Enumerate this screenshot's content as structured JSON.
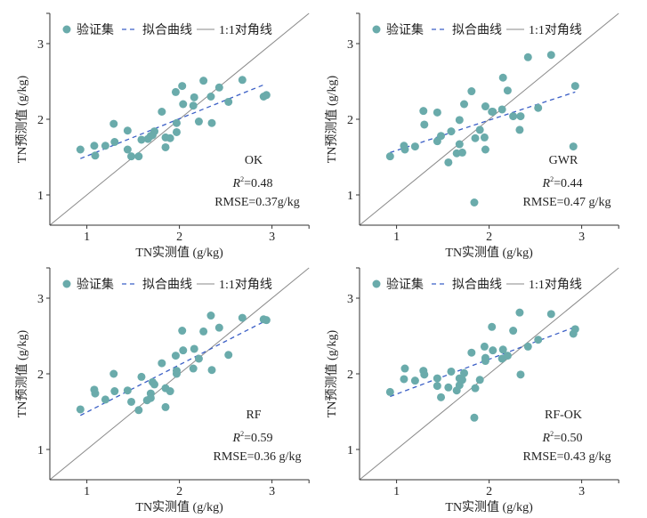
{
  "colors": {
    "point": "#6aabab",
    "fit": "#3b5fc6",
    "diagonal": "#8a8a8a",
    "axis": "#333333"
  },
  "legend": {
    "points": "验证集",
    "fit": "拟合曲线",
    "diagonal": "1:1对角线"
  },
  "chart_data": [
    {
      "type": "scatter",
      "title": "OK",
      "xlabel": "TN实测值 (g/kg)",
      "ylabel": "TN预测值 (g/kg)",
      "xlim": [
        0.6,
        3.4
      ],
      "ylim": [
        0.6,
        3.4
      ],
      "xticks": [
        "1",
        "2",
        "3"
      ],
      "yticks": [
        "1",
        "2",
        "3"
      ],
      "r2_label": "R",
      "r2_value": "=0.48",
      "rmse": "RMSE=0.37g/kg",
      "fit": [
        [
          0.93,
          1.48
        ],
        [
          2.92,
          2.46
        ]
      ],
      "points": [
        [
          0.93,
          1.6
        ],
        [
          1.08,
          1.65
        ],
        [
          1.09,
          1.52
        ],
        [
          1.2,
          1.65
        ],
        [
          1.29,
          1.94
        ],
        [
          1.3,
          1.7
        ],
        [
          1.44,
          1.85
        ],
        [
          1.44,
          1.6
        ],
        [
          1.48,
          1.51
        ],
        [
          1.56,
          1.51
        ],
        [
          1.59,
          1.73
        ],
        [
          1.66,
          1.74
        ],
        [
          1.69,
          1.78
        ],
        [
          1.71,
          1.79
        ],
        [
          1.73,
          1.84
        ],
        [
          1.81,
          2.1
        ],
        [
          1.85,
          1.63
        ],
        [
          1.85,
          1.76
        ],
        [
          1.9,
          1.75
        ],
        [
          1.96,
          2.36
        ],
        [
          1.97,
          1.83
        ],
        [
          1.97,
          1.95
        ],
        [
          2.03,
          2.44
        ],
        [
          2.04,
          2.2
        ],
        [
          2.15,
          2.18
        ],
        [
          2.16,
          2.29
        ],
        [
          2.21,
          1.97
        ],
        [
          2.26,
          2.51
        ],
        [
          2.34,
          2.3
        ],
        [
          2.35,
          1.95
        ],
        [
          2.43,
          2.42
        ],
        [
          2.53,
          2.23
        ],
        [
          2.68,
          2.52
        ],
        [
          2.91,
          2.3
        ],
        [
          2.94,
          2.32
        ]
      ]
    },
    {
      "type": "scatter",
      "title": "GWR",
      "xlabel": "TN实测值 (g/kg)",
      "ylabel": "TN预测值 (g/kg)",
      "xlim": [
        0.6,
        3.4
      ],
      "ylim": [
        0.6,
        3.4
      ],
      "xticks": [
        "1",
        "2",
        "3"
      ],
      "yticks": [
        "1",
        "2",
        "3"
      ],
      "r2_label": "R",
      "r2_value": "=0.44",
      "rmse": "RMSE=0.47 g/kg",
      "fit": [
        [
          0.93,
          1.56
        ],
        [
          2.93,
          2.36
        ]
      ],
      "points": [
        [
          0.93,
          1.51
        ],
        [
          1.08,
          1.65
        ],
        [
          1.09,
          1.6
        ],
        [
          1.2,
          1.64
        ],
        [
          1.29,
          2.11
        ],
        [
          1.3,
          1.93
        ],
        [
          1.44,
          2.09
        ],
        [
          1.44,
          1.71
        ],
        [
          1.48,
          1.78
        ],
        [
          1.56,
          1.43
        ],
        [
          1.59,
          1.84
        ],
        [
          1.65,
          1.55
        ],
        [
          1.68,
          1.99
        ],
        [
          1.68,
          1.67
        ],
        [
          1.71,
          1.56
        ],
        [
          1.73,
          2.2
        ],
        [
          1.81,
          2.37
        ],
        [
          1.85,
          1.75
        ],
        [
          1.84,
          0.9
        ],
        [
          1.9,
          1.86
        ],
        [
          1.95,
          1.76
        ],
        [
          1.96,
          2.17
        ],
        [
          1.96,
          1.6
        ],
        [
          2.03,
          2.1
        ],
        [
          2.04,
          2.1
        ],
        [
          2.14,
          2.13
        ],
        [
          2.15,
          2.55
        ],
        [
          2.2,
          2.38
        ],
        [
          2.26,
          2.04
        ],
        [
          2.33,
          1.86
        ],
        [
          2.34,
          2.04
        ],
        [
          2.42,
          2.82
        ],
        [
          2.53,
          2.15
        ],
        [
          2.67,
          2.85
        ],
        [
          2.91,
          1.64
        ],
        [
          2.93,
          2.44
        ]
      ]
    },
    {
      "type": "scatter",
      "title": "RF",
      "xlabel": "TN实测值 (g/kg)",
      "ylabel": "TN预测值 (g/kg)",
      "xlim": [
        0.6,
        3.4
      ],
      "ylim": [
        0.6,
        3.4
      ],
      "xticks": [
        "1",
        "2",
        "3"
      ],
      "yticks": [
        "1",
        "2",
        "3"
      ],
      "r2_label": "R",
      "r2_value": "=0.59",
      "rmse": "RMSE=0.36 g/kg",
      "fit": [
        [
          0.93,
          1.45
        ],
        [
          2.93,
          2.7
        ]
      ],
      "points": [
        [
          0.93,
          1.53
        ],
        [
          1.08,
          1.79
        ],
        [
          1.09,
          1.74
        ],
        [
          1.2,
          1.66
        ],
        [
          1.29,
          2.0
        ],
        [
          1.3,
          1.77
        ],
        [
          1.44,
          1.78
        ],
        [
          1.48,
          1.63
        ],
        [
          1.56,
          1.52
        ],
        [
          1.59,
          1.96
        ],
        [
          1.65,
          1.65
        ],
        [
          1.69,
          1.74
        ],
        [
          1.69,
          1.68
        ],
        [
          1.71,
          1.89
        ],
        [
          1.73,
          1.86
        ],
        [
          1.81,
          2.14
        ],
        [
          1.85,
          1.56
        ],
        [
          1.85,
          1.81
        ],
        [
          1.9,
          1.77
        ],
        [
          1.96,
          2.24
        ],
        [
          1.97,
          2.04
        ],
        [
          1.97,
          2.0
        ],
        [
          2.03,
          2.57
        ],
        [
          2.04,
          2.31
        ],
        [
          2.15,
          2.07
        ],
        [
          2.16,
          2.33
        ],
        [
          2.21,
          2.2
        ],
        [
          2.26,
          2.56
        ],
        [
          2.34,
          2.77
        ],
        [
          2.35,
          2.05
        ],
        [
          2.43,
          2.61
        ],
        [
          2.53,
          2.25
        ],
        [
          2.68,
          2.74
        ],
        [
          2.91,
          2.72
        ],
        [
          2.94,
          2.71
        ]
      ]
    },
    {
      "type": "scatter",
      "title": "RF-OK",
      "xlabel": "TN实测值 (g/kg)",
      "ylabel": "TN预测值 (g/kg)",
      "xlim": [
        0.6,
        3.4
      ],
      "ylim": [
        0.6,
        3.4
      ],
      "xticks": [
        "1",
        "2",
        "3"
      ],
      "yticks": [
        "1",
        "2",
        "3"
      ],
      "r2_label": "R",
      "r2_value": "=0.50",
      "rmse": "RMSE=0.43 g/kg",
      "fit": [
        [
          0.93,
          1.7
        ],
        [
          2.93,
          2.62
        ]
      ],
      "points": [
        [
          0.93,
          1.76
        ],
        [
          1.08,
          1.93
        ],
        [
          1.09,
          2.07
        ],
        [
          1.2,
          1.91
        ],
        [
          1.29,
          2.04
        ],
        [
          1.3,
          1.99
        ],
        [
          1.44,
          1.94
        ],
        [
          1.44,
          1.84
        ],
        [
          1.48,
          1.69
        ],
        [
          1.56,
          1.82
        ],
        [
          1.59,
          2.03
        ],
        [
          1.65,
          1.78
        ],
        [
          1.68,
          1.94
        ],
        [
          1.68,
          1.85
        ],
        [
          1.71,
          1.92
        ],
        [
          1.73,
          2.01
        ],
        [
          1.81,
          2.28
        ],
        [
          1.85,
          1.81
        ],
        [
          1.84,
          1.42
        ],
        [
          1.9,
          1.92
        ],
        [
          1.95,
          2.36
        ],
        [
          1.96,
          2.21
        ],
        [
          1.96,
          2.17
        ],
        [
          2.03,
          2.62
        ],
        [
          2.04,
          2.31
        ],
        [
          2.14,
          2.2
        ],
        [
          2.15,
          2.32
        ],
        [
          2.2,
          2.24
        ],
        [
          2.26,
          2.57
        ],
        [
          2.33,
          2.81
        ],
        [
          2.34,
          1.99
        ],
        [
          2.42,
          2.36
        ],
        [
          2.53,
          2.45
        ],
        [
          2.67,
          2.79
        ],
        [
          2.91,
          2.53
        ],
        [
          2.93,
          2.59
        ]
      ]
    }
  ]
}
